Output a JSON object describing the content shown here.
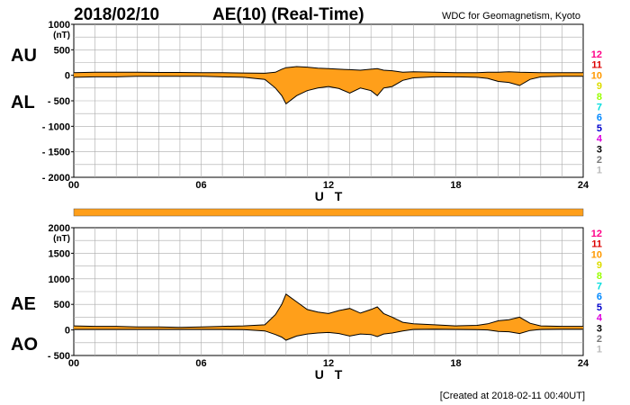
{
  "header": {
    "date": "2018/02/10",
    "title": "AE(10) (Real-Time)",
    "source": "WDC for Geomagnetism, Kyoto"
  },
  "footer": {
    "created": "[Created at 2018-02-11 00:40UT]"
  },
  "colors": {
    "fill": "#ff9f1a",
    "line": "#000000",
    "grid": "#aaaaaa",
    "status_bar": "#ff9f1a"
  },
  "legend": {
    "stations": [
      "12",
      "11",
      "10",
      "9",
      "8",
      "7",
      "6",
      "5",
      "4",
      "3",
      "2",
      "1"
    ],
    "colors": [
      "#ff0088",
      "#dd0000",
      "#ff9900",
      "#dddd00",
      "#99ff00",
      "#00dddd",
      "#0088ff",
      "#0000cc",
      "#dd00dd",
      "#000000",
      "#777777",
      "#bbbbbb"
    ]
  },
  "chart_data": [
    {
      "type": "area",
      "name": "AU-AL",
      "title": "2018/02/10 AE(10) (Real-Time)",
      "side_labels": [
        "AU",
        "AL"
      ],
      "unit_label": "(nT)",
      "xlabel": "U T",
      "xlim": [
        0,
        24
      ],
      "ylim": [
        -2000,
        1000
      ],
      "yticks": [
        1000,
        500,
        0,
        -500,
        -1000,
        -1500,
        -2000
      ],
      "ytick_labels": [
        "1000",
        "500",
        "0",
        "- 500",
        "- 1000",
        "- 1500",
        "- 2000"
      ],
      "unit_after_index": 0,
      "xticks": [
        0,
        6,
        12,
        18,
        24
      ],
      "xtick_labels": [
        "00",
        "06",
        "12",
        "18",
        "24"
      ],
      "grid": true,
      "series": [
        {
          "name": "AU",
          "x": [
            0,
            1,
            2,
            3,
            4,
            5,
            6,
            7,
            8,
            9,
            9.5,
            9.8,
            10,
            10.5,
            11,
            11.5,
            12,
            12.5,
            13,
            13.5,
            14,
            14.3,
            14.6,
            15,
            15.5,
            16,
            17,
            18,
            19,
            19.5,
            20,
            20.5,
            21,
            21.5,
            22,
            23,
            24
          ],
          "values": [
            50,
            60,
            60,
            60,
            55,
            55,
            50,
            50,
            45,
            40,
            60,
            120,
            150,
            170,
            160,
            140,
            130,
            120,
            110,
            100,
            120,
            130,
            100,
            90,
            60,
            70,
            60,
            50,
            50,
            60,
            60,
            70,
            60,
            55,
            50,
            50,
            50
          ]
        },
        {
          "name": "AL",
          "x": [
            0,
            1,
            2,
            3,
            4,
            5,
            6,
            7,
            8,
            9,
            9.5,
            9.8,
            10,
            10.5,
            11,
            11.5,
            12,
            12.5,
            13,
            13.5,
            14,
            14.3,
            14.6,
            15,
            15.5,
            16,
            17,
            18,
            19,
            19.5,
            20,
            20.5,
            21,
            21.5,
            22,
            23,
            24
          ],
          "values": [
            -40,
            -30,
            -30,
            -20,
            -20,
            -20,
            -20,
            -30,
            -40,
            -80,
            -250,
            -400,
            -560,
            -400,
            -300,
            -250,
            -220,
            -260,
            -350,
            -250,
            -300,
            -400,
            -250,
            -220,
            -100,
            -50,
            -30,
            -30,
            -40,
            -60,
            -120,
            -140,
            -200,
            -80,
            -30,
            -20,
            -20
          ]
        }
      ],
      "legend": [
        "12",
        "11",
        "10",
        "9",
        "8",
        "7",
        "6",
        "5",
        "4",
        "3",
        "2",
        "1"
      ]
    },
    {
      "type": "area",
      "name": "AE-AO",
      "side_labels": [
        "AE",
        "AO"
      ],
      "unit_label": "(nT)",
      "xlabel": "U T",
      "xlim": [
        0,
        24
      ],
      "ylim": [
        -500,
        2000
      ],
      "yticks": [
        2000,
        1500,
        1000,
        500,
        0,
        -500
      ],
      "ytick_labels": [
        "2000",
        "1500",
        "1000",
        "500",
        "0",
        "- 500"
      ],
      "unit_after_index": 0,
      "xticks": [
        0,
        6,
        12,
        18,
        24
      ],
      "xtick_labels": [
        "00",
        "06",
        "12",
        "18",
        "24"
      ],
      "grid": true,
      "series": [
        {
          "name": "AE",
          "x": [
            0,
            1,
            2,
            3,
            4,
            5,
            6,
            7,
            8,
            9,
            9.5,
            9.8,
            10,
            10.5,
            11,
            11.5,
            12,
            12.5,
            13,
            13.5,
            14,
            14.3,
            14.6,
            15,
            15.5,
            16,
            17,
            18,
            19,
            19.5,
            20,
            20.5,
            21,
            21.5,
            22,
            23,
            24
          ],
          "values": [
            80,
            70,
            70,
            60,
            60,
            50,
            60,
            70,
            80,
            100,
            300,
            500,
            700,
            550,
            400,
            350,
            320,
            380,
            420,
            330,
            400,
            450,
            320,
            250,
            150,
            120,
            100,
            80,
            90,
            120,
            180,
            200,
            250,
            130,
            80,
            70,
            70
          ]
        },
        {
          "name": "AO",
          "x": [
            0,
            1,
            2,
            3,
            4,
            5,
            6,
            7,
            8,
            9,
            9.5,
            9.8,
            10,
            10.5,
            11,
            11.5,
            12,
            12.5,
            13,
            13.5,
            14,
            14.3,
            14.6,
            15,
            15.5,
            16,
            17,
            18,
            19,
            19.5,
            20,
            20.5,
            21,
            21.5,
            22,
            23,
            24
          ],
          "values": [
            10,
            10,
            10,
            10,
            10,
            10,
            10,
            10,
            5,
            -20,
            -90,
            -140,
            -200,
            -120,
            -80,
            -60,
            -50,
            -70,
            -120,
            -80,
            -90,
            -130,
            -80,
            -60,
            -20,
            10,
            15,
            10,
            5,
            0,
            -30,
            -35,
            -70,
            -10,
            10,
            15,
            15
          ]
        }
      ],
      "legend": [
        "12",
        "11",
        "10",
        "9",
        "8",
        "7",
        "6",
        "5",
        "4",
        "3",
        "2",
        "1"
      ]
    }
  ]
}
